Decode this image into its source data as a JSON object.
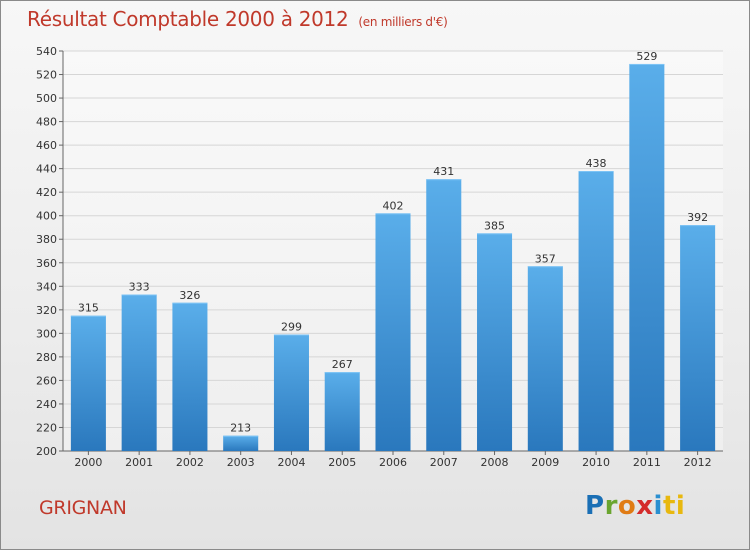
{
  "header": {
    "title": "Résultat Comptable 2000 à 2012",
    "subtitle": "(en milliers d'€)"
  },
  "footer": {
    "commune": "GRIGNAN",
    "brand": "Proxiti",
    "brand_letters": [
      "P",
      "r",
      "o",
      "x",
      "i",
      "t",
      "i"
    ]
  },
  "colors": {
    "title": "#c0392b",
    "bar_top": "#5aaeea",
    "bar_bottom": "#2a78bd",
    "grid": "#d6d6d6"
  },
  "chart_data": {
    "type": "bar",
    "title": "Résultat Comptable 2000 à 2012",
    "subtitle": "(en milliers d'€)",
    "categories": [
      "2000",
      "2001",
      "2002",
      "2003",
      "2004",
      "2005",
      "2006",
      "2007",
      "2008",
      "2009",
      "2010",
      "2011",
      "2012"
    ],
    "values": [
      315,
      333,
      326,
      213,
      299,
      267,
      402,
      431,
      385,
      357,
      438,
      529,
      392
    ],
    "ylim": [
      200,
      540
    ],
    "yticks": [
      200,
      220,
      240,
      260,
      280,
      300,
      320,
      340,
      360,
      380,
      400,
      420,
      440,
      460,
      480,
      500,
      520,
      540
    ],
    "grid": true,
    "legend": "none",
    "data_labels": true
  }
}
